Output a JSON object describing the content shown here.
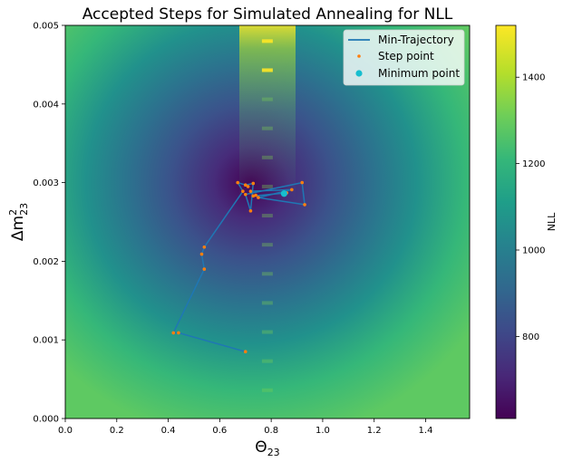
{
  "chart_data": {
    "type": "heatmap",
    "title": "Accepted Steps for Simulated Annealing for NLL",
    "xlabel": "Θ",
    "xlabel_sub": "23",
    "ylabel": "Δm",
    "ylabel_sup": "2",
    "ylabel_sub": "23",
    "xlim": [
      0,
      1.5708
    ],
    "ylim": [
      0,
      0.005
    ],
    "xticks": [
      "0.0",
      "0.2",
      "0.4",
      "0.6",
      "0.8",
      "1.0",
      "1.2",
      "1.4"
    ],
    "xtick_values": [
      0,
      0.2,
      0.4,
      0.6,
      0.8,
      1.0,
      1.2,
      1.4
    ],
    "yticks": [
      "0.000",
      "0.001",
      "0.002",
      "0.003",
      "0.004",
      "0.005"
    ],
    "ytick_values": [
      0,
      0.001,
      0.002,
      0.003,
      0.004,
      0.005
    ],
    "colorbar": {
      "label": "NLL",
      "range": [
        610,
        1520
      ],
      "ticks": [
        "800",
        "1000",
        "1200",
        "1400"
      ],
      "tick_values": [
        800,
        1000,
        1200,
        1400
      ],
      "colormap": "viridis"
    },
    "legend": {
      "placement": "top-right",
      "entries": [
        "Min-Trajectory",
        "Step point",
        "Minimum point"
      ]
    },
    "colors": {
      "trajectory": "#1f77b4",
      "step_point": "#ff7f0e",
      "minimum_point": "#17becf"
    },
    "series": [
      {
        "name": "Min-Trajectory",
        "points": [
          [
            0.7,
            0.00085
          ],
          [
            0.44,
            0.00109
          ],
          [
            0.42,
            0.00109
          ],
          [
            0.54,
            0.0019
          ],
          [
            0.53,
            0.00209
          ],
          [
            0.54,
            0.00218
          ],
          [
            0.69,
            0.00289
          ],
          [
            0.67,
            0.003
          ],
          [
            0.7,
            0.00297
          ],
          [
            0.73,
            0.00299
          ],
          [
            0.72,
            0.00264
          ],
          [
            0.7,
            0.00285
          ],
          [
            0.92,
            0.003
          ],
          [
            0.93,
            0.00272
          ],
          [
            0.75,
            0.00281
          ],
          [
            0.88,
            0.00291
          ],
          [
            0.72,
            0.00289
          ],
          [
            0.73,
            0.00283
          ],
          [
            0.86,
            0.00287
          ],
          [
            0.85,
            0.00286
          ]
        ]
      },
      {
        "name": "Step point",
        "points": [
          [
            0.7,
            0.00085
          ],
          [
            0.44,
            0.00109
          ],
          [
            0.42,
            0.00109
          ],
          [
            0.54,
            0.0019
          ],
          [
            0.53,
            0.00209
          ],
          [
            0.54,
            0.00218
          ],
          [
            0.69,
            0.00289
          ],
          [
            0.67,
            0.003
          ],
          [
            0.7,
            0.00297
          ],
          [
            0.73,
            0.00299
          ],
          [
            0.72,
            0.00264
          ],
          [
            0.7,
            0.00285
          ],
          [
            0.92,
            0.003
          ],
          [
            0.93,
            0.00272
          ],
          [
            0.75,
            0.00281
          ],
          [
            0.88,
            0.00291
          ],
          [
            0.72,
            0.00289
          ],
          [
            0.73,
            0.00283
          ],
          [
            0.86,
            0.00287
          ],
          [
            0.74,
            0.00284
          ],
          [
            0.71,
            0.00295
          ]
        ]
      },
      {
        "name": "Minimum point",
        "points": [
          [
            0.85,
            0.00286
          ]
        ]
      }
    ]
  }
}
